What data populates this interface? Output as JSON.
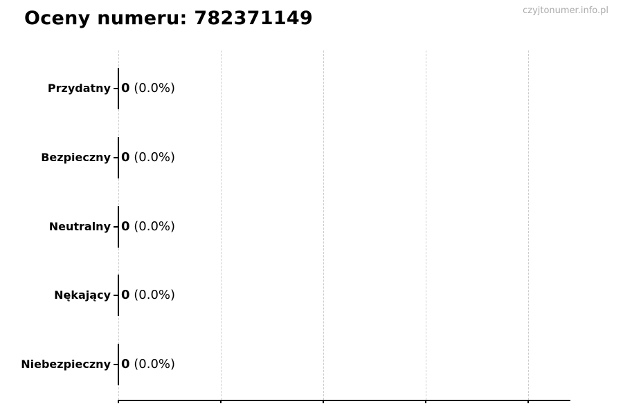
{
  "title": "Oceny numeru: 782371149",
  "watermark": "czyjtonumer.info.pl",
  "chart_data": {
    "type": "bar",
    "orientation": "horizontal",
    "title": "Oceny numeru: 782371149",
    "categories": [
      "Przydatny",
      "Bezpieczny",
      "Neutralny",
      "Nękający",
      "Niebezpieczny"
    ],
    "values": [
      0,
      0,
      0,
      0,
      0
    ],
    "percent_labels": [
      "(0.0%)",
      "(0.0%)",
      "(0.0%)",
      "(0.0%)",
      "(0.0%)"
    ],
    "xlabel": "",
    "ylabel": "",
    "xlim": [
      0,
      4.4
    ],
    "x_gridline_count": 5,
    "grid": "vertical-dashed",
    "legend": "none",
    "bar_edge_color": "#000000"
  },
  "colors": {
    "background": "#ffffff",
    "text": "#000000",
    "gridline": "#cccccc",
    "watermark": "#ababab",
    "axis": "#000000"
  }
}
